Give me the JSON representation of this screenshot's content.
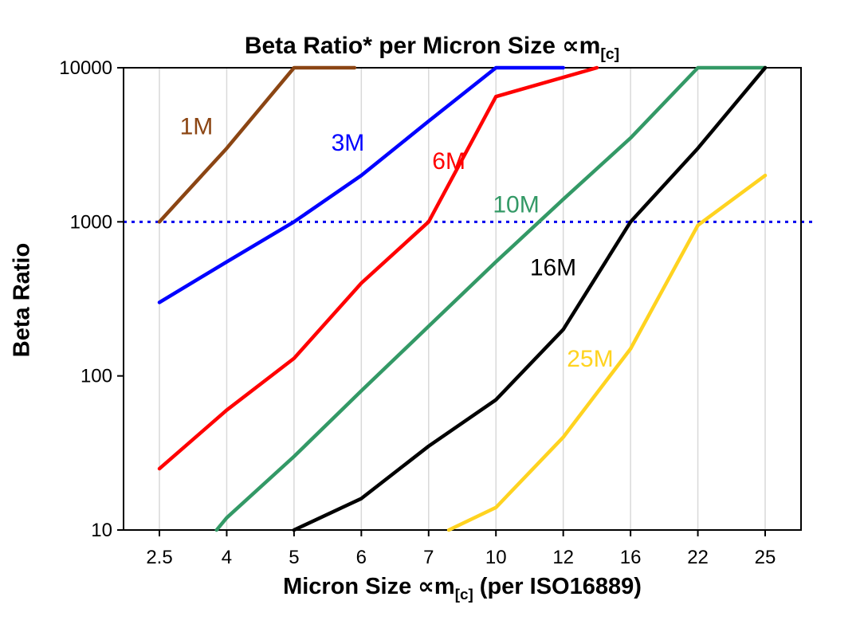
{
  "title": {
    "prefix": "Beta Ratio* per Micron Size ",
    "symbol": "∝m",
    "subscript": "[c]"
  },
  "axes": {
    "y_label": "Beta Ratio",
    "x_label_prefix": "Micron Size ∝m",
    "x_label_subscript": "[c]",
    "x_label_suffix": " (per ISO16889)"
  },
  "chart_data": {
    "type": "line",
    "title": "Beta Ratio* per Micron Size ∝m[c]",
    "xlabel": "Micron Size ∝m[c] (per ISO16889)",
    "ylabel": "Beta Ratio",
    "x_scale": "categorical",
    "y_scale": "log",
    "categories": [
      "2.5",
      "4",
      "5",
      "6",
      "7",
      "10",
      "12",
      "16",
      "22",
      "25"
    ],
    "y_ticks": [
      "10",
      "100",
      "1000",
      "10000"
    ],
    "ylim": [
      10,
      10000
    ],
    "grid": "vertical-only",
    "grid_color": "#d9d9d9",
    "frame_color": "#000000",
    "reference_line": {
      "value": 1000,
      "color": "#0000ee",
      "style": "dotted"
    },
    "series": [
      {
        "name": "1M",
        "color": "#8B4513",
        "points": [
          [
            0,
            1000
          ],
          [
            1,
            3000
          ],
          [
            2,
            10000
          ],
          [
            2.9,
            10000
          ]
        ]
      },
      {
        "name": "3M",
        "color": "#0000FF",
        "points": [
          [
            0,
            300
          ],
          [
            1,
            550
          ],
          [
            2,
            1000
          ],
          [
            3,
            2000
          ],
          [
            4,
            4500
          ],
          [
            5,
            10000
          ],
          [
            6,
            10000
          ]
        ]
      },
      {
        "name": "6M",
        "color": "#FF0000",
        "points": [
          [
            0,
            25
          ],
          [
            1,
            60
          ],
          [
            2,
            130
          ],
          [
            3,
            400
          ],
          [
            4,
            1000
          ],
          [
            5,
            6500
          ],
          [
            6.5,
            10000
          ]
        ]
      },
      {
        "name": "10M",
        "color": "#339966",
        "points": [
          [
            0.85,
            10
          ],
          [
            1,
            12
          ],
          [
            2,
            30
          ],
          [
            3,
            80
          ],
          [
            4,
            210
          ],
          [
            5,
            550
          ],
          [
            6,
            1400
          ],
          [
            7,
            3500
          ],
          [
            8,
            10000
          ],
          [
            9,
            10000
          ]
        ]
      },
      {
        "name": "16M",
        "color": "#000000",
        "points": [
          [
            2,
            10
          ],
          [
            3,
            16
          ],
          [
            4,
            35
          ],
          [
            5,
            70
          ],
          [
            6,
            200
          ],
          [
            7,
            1000
          ],
          [
            8,
            3000
          ],
          [
            9,
            10000
          ]
        ]
      },
      {
        "name": "25M",
        "color": "#FFD320",
        "points": [
          [
            4.3,
            10
          ],
          [
            5,
            14
          ],
          [
            6,
            40
          ],
          [
            7,
            150
          ],
          [
            8,
            950
          ],
          [
            9,
            2000
          ]
        ]
      }
    ],
    "labels": [
      {
        "text": "1M",
        "color": "#8B4513",
        "xi": 0.55,
        "y": 3700
      },
      {
        "text": "3M",
        "color": "#0000FF",
        "xi": 2.8,
        "y": 2900
      },
      {
        "text": "6M",
        "color": "#FF0000",
        "xi": 4.3,
        "y": 2200
      },
      {
        "text": "10M",
        "color": "#339966",
        "xi": 5.3,
        "y": 1150
      },
      {
        "text": "16M",
        "color": "#000000",
        "xi": 5.85,
        "y": 450
      },
      {
        "text": "25M",
        "color": "#FFD320",
        "xi": 6.4,
        "y": 115
      }
    ]
  }
}
